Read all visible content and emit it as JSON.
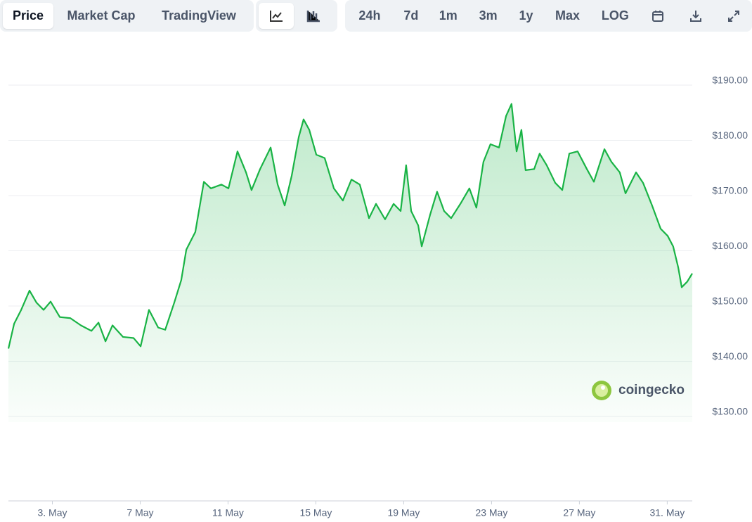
{
  "toolbar": {
    "tabs": [
      "Price",
      "Market Cap",
      "TradingView"
    ],
    "ranges": [
      "24h",
      "7d",
      "1m",
      "3m",
      "1y",
      "Max",
      "LOG"
    ]
  },
  "watermark": "coingecko",
  "chart_data": {
    "type": "line",
    "x": [
      1.0,
      1.26,
      1.58,
      1.96,
      2.28,
      2.6,
      2.92,
      3.34,
      3.82,
      4.3,
      4.78,
      5.1,
      5.42,
      5.74,
      6.22,
      6.7,
      7.02,
      7.4,
      7.82,
      8.14,
      8.55,
      8.87,
      9.1,
      9.51,
      9.9,
      10.22,
      10.7,
      11.02,
      11.43,
      11.82,
      12.07,
      12.46,
      12.94,
      13.26,
      13.58,
      13.9,
      14.22,
      14.44,
      14.7,
      15.02,
      15.4,
      15.82,
      16.23,
      16.62,
      17.0,
      17.42,
      17.74,
      18.15,
      18.54,
      18.86,
      19.11,
      19.34,
      19.66,
      19.82,
      20.2,
      20.52,
      20.84,
      21.16,
      21.58,
      21.99,
      22.31,
      22.63,
      22.95,
      23.34,
      23.66,
      23.91,
      24.14,
      24.36,
      24.55,
      24.94,
      25.19,
      25.51,
      25.9,
      26.22,
      26.54,
      26.92,
      27.34,
      27.66,
      28.14,
      28.46,
      28.84,
      29.1,
      29.58,
      29.9,
      30.31,
      30.7,
      31.02,
      31.27,
      31.5,
      31.66,
      31.91,
      32.14
    ],
    "series": [
      {
        "name": "Price",
        "color": "#19b345",
        "values": [
          142.3,
          146.8,
          149.3,
          152.8,
          150.6,
          149.3,
          150.8,
          148,
          147.8,
          146.5,
          145.5,
          147,
          143.6,
          146.5,
          144.4,
          144.2,
          142.7,
          149.3,
          146.1,
          145.7,
          150.6,
          154.7,
          160.2,
          163.4,
          172.5,
          171.3,
          172,
          171.3,
          178,
          174.2,
          171,
          174.8,
          178.7,
          172,
          168.2,
          173.6,
          180.6,
          183.8,
          181.9,
          177.4,
          176.8,
          171.3,
          169.1,
          172.9,
          172,
          165.9,
          168.5,
          165.7,
          168.5,
          167.2,
          175.5,
          167.2,
          164.6,
          160.8,
          166.5,
          170.7,
          167.2,
          165.9,
          168.5,
          171.3,
          167.8,
          176.1,
          179.3,
          178.7,
          184.4,
          186.6,
          178,
          181.9,
          174.6,
          174.8,
          177.6,
          175.5,
          172.3,
          171,
          177.6,
          178,
          174.8,
          172.5,
          178.4,
          176.1,
          174.2,
          170.4,
          174.2,
          172.3,
          168.2,
          164,
          162.7,
          160.8,
          157,
          153.4,
          154.4,
          155.9
        ]
      }
    ],
    "xlim": [
      1,
      32.14
    ],
    "xticks": [
      {
        "value": 3,
        "label": "3. May"
      },
      {
        "value": 7,
        "label": "7 May"
      },
      {
        "value": 11,
        "label": "11 May"
      },
      {
        "value": 15,
        "label": "15 May"
      },
      {
        "value": 19,
        "label": "19 May"
      },
      {
        "value": 23,
        "label": "23 May"
      },
      {
        "value": 27,
        "label": "27 May"
      },
      {
        "value": 31,
        "label": "31. May"
      }
    ],
    "ylim": [
      130,
      190
    ],
    "yticks": [
      {
        "value": 130,
        "label": "$130.00"
      },
      {
        "value": 140,
        "label": "$140.00"
      },
      {
        "value": 150,
        "label": "$150.00"
      },
      {
        "value": 160,
        "label": "$160.00"
      },
      {
        "value": 170,
        "label": "$170.00"
      },
      {
        "value": 180,
        "label": "$180.00"
      },
      {
        "value": 190,
        "label": "$190.00"
      }
    ],
    "grid": true
  }
}
